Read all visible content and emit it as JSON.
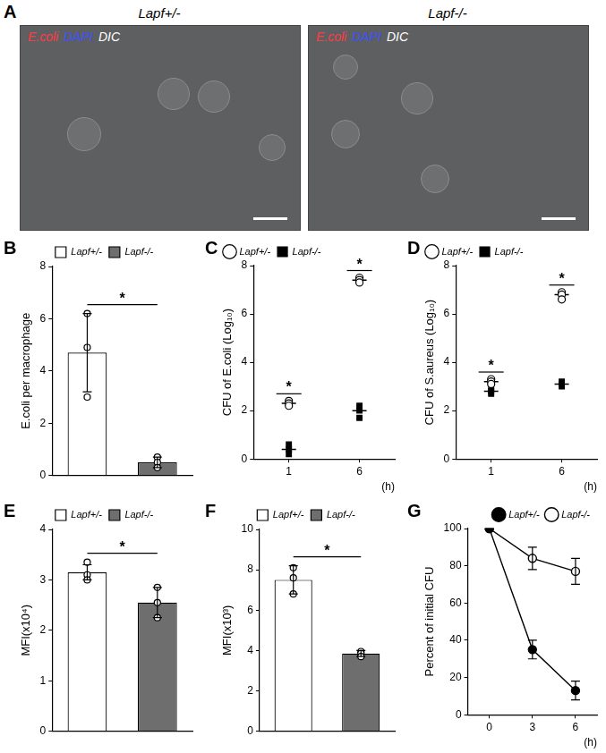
{
  "panel_a": {
    "panel": "A",
    "images": [
      {
        "title": "Lapf+/-",
        "channels": [
          {
            "text": "E.coli",
            "color": "#ff3b45"
          },
          {
            "text": "DAPI",
            "color": "#3d52ff"
          },
          {
            "text": "DIC",
            "color": "#ffffff"
          }
        ]
      },
      {
        "title": "Lapf-/-",
        "channels": [
          {
            "text": "E.coli",
            "color": "#ff3b45"
          },
          {
            "text": "DAPI",
            "color": "#3d52ff"
          },
          {
            "text": "DIC",
            "color": "#ffffff"
          }
        ]
      }
    ]
  },
  "chart_data": [
    {
      "panel": "B",
      "type": "bar",
      "categories": [
        null,
        null
      ],
      "y_label": "E.coli per macrophage",
      "ylim": [
        0,
        8
      ],
      "yticks": [
        0,
        2,
        4,
        6,
        8
      ],
      "grid": false,
      "legend": "top",
      "series": [
        {
          "name": "Lapf+/-",
          "color": "#ffffff",
          "values": [
            4.7,
            null
          ],
          "errors": [
            1.5,
            null
          ],
          "points": [
            [
              3.0,
              4.9,
              6.2
            ],
            null
          ]
        },
        {
          "name": "Lapf-/-",
          "color": "#6e6e6e",
          "values": [
            null,
            0.5
          ],
          "errors": [
            null,
            0.2
          ],
          "points": [
            null,
            [
              0.3,
              0.5,
              0.7
            ]
          ]
        }
      ],
      "annotations": [
        "*"
      ]
    },
    {
      "panel": "C",
      "type": "scatter",
      "categories": [
        "1",
        "6"
      ],
      "x_label": "(h)",
      "y_label": "CFU of E.coli (Log₁₀)",
      "ylim": [
        0,
        8
      ],
      "yticks": [
        0,
        2,
        4,
        6,
        8
      ],
      "grid": false,
      "legend": "top-left",
      "series": [
        {
          "name": "Lapf+/-",
          "color": "#000000",
          "marker": "open_circle",
          "values": [
            2.3,
            7.4
          ],
          "points": [
            [
              2.2,
              2.3,
              2.4
            ],
            [
              7.3,
              7.4,
              7.5
            ]
          ]
        },
        {
          "name": "Lapf-/-",
          "color": "#000000",
          "marker": "filled_square",
          "values": [
            0.4,
            2.0
          ],
          "points": [
            [
              0.2,
              0.4,
              0.6
            ],
            [
              1.7,
              2.0,
              2.2
            ]
          ]
        }
      ],
      "annotations": [
        "*",
        "*"
      ]
    },
    {
      "panel": "D",
      "type": "scatter",
      "categories": [
        "1",
        "6"
      ],
      "x_label": "(h)",
      "y_label": "CFU of S.aureus (Log₁₀)",
      "ylim": [
        0,
        8
      ],
      "yticks": [
        0,
        2,
        4,
        6,
        8
      ],
      "grid": false,
      "legend": "top-left",
      "series": [
        {
          "name": "Lapf+/-",
          "color": "#000000",
          "marker": "open_circle",
          "values": [
            3.2,
            6.8
          ],
          "points": [
            [
              3.1,
              3.2,
              3.3
            ],
            [
              6.6,
              6.8,
              6.9
            ]
          ]
        },
        {
          "name": "Lapf-/-",
          "color": "#000000",
          "marker": "filled_square",
          "values": [
            2.8,
            3.1
          ],
          "points": [
            [
              2.7,
              2.8,
              2.9
            ],
            [
              3.0,
              3.1,
              3.2
            ]
          ]
        }
      ],
      "annotations": [
        "*",
        "*"
      ]
    },
    {
      "panel": "E",
      "type": "bar",
      "categories": [
        null,
        null
      ],
      "y_label": "MFI(x10⁴)",
      "ylim": [
        0,
        4
      ],
      "yticks": [
        0,
        1,
        2,
        3,
        4
      ],
      "grid": false,
      "legend": "top",
      "series": [
        {
          "name": "Lapf+/-",
          "color": "#ffffff",
          "values": [
            3.15,
            null
          ],
          "errors": [
            0.15,
            null
          ],
          "points": [
            [
              3.0,
              3.1,
              3.35
            ],
            null
          ]
        },
        {
          "name": "Lapf-/-",
          "color": "#6e6e6e",
          "values": [
            null,
            2.55
          ],
          "errors": [
            null,
            0.3
          ],
          "points": [
            null,
            [
              2.25,
              2.55,
              2.85
            ]
          ]
        }
      ],
      "annotations": [
        "*"
      ]
    },
    {
      "panel": "F",
      "type": "bar",
      "categories": [
        null,
        null
      ],
      "y_label": "MFI(x10³)",
      "ylim": [
        0,
        10
      ],
      "yticks": [
        0,
        2,
        4,
        6,
        8,
        10
      ],
      "grid": false,
      "legend": "top",
      "series": [
        {
          "name": "Lapf+/-",
          "color": "#ffffff",
          "values": [
            7.5,
            null
          ],
          "errors": [
            0.7,
            null
          ],
          "points": [
            [
              6.8,
              7.6,
              8.1
            ],
            null
          ]
        },
        {
          "name": "Lapf-/-",
          "color": "#6e6e6e",
          "values": [
            null,
            3.85
          ],
          "errors": [
            null,
            0.15
          ],
          "points": [
            null,
            [
              3.7,
              3.85,
              3.95
            ]
          ]
        }
      ],
      "annotations": [
        "*"
      ]
    },
    {
      "panel": "G",
      "type": "line",
      "categories": [
        "0",
        "3",
        "6"
      ],
      "x_label": "(h)",
      "y_label": "Percent of initial CFU",
      "ylim": [
        0,
        100
      ],
      "yticks": [
        0,
        20,
        40,
        60,
        80,
        100
      ],
      "grid": false,
      "legend": "top-right",
      "series": [
        {
          "name": "Lapf+/-",
          "color": "#000000",
          "marker": "filled_circle",
          "values": [
            100,
            35,
            13
          ],
          "errors": [
            0,
            5,
            5
          ]
        },
        {
          "name": "Lapf-/-",
          "color": "#000000",
          "marker": "open_circle",
          "values": [
            100,
            84,
            77
          ],
          "errors": [
            0,
            6,
            7
          ]
        }
      ]
    }
  ]
}
